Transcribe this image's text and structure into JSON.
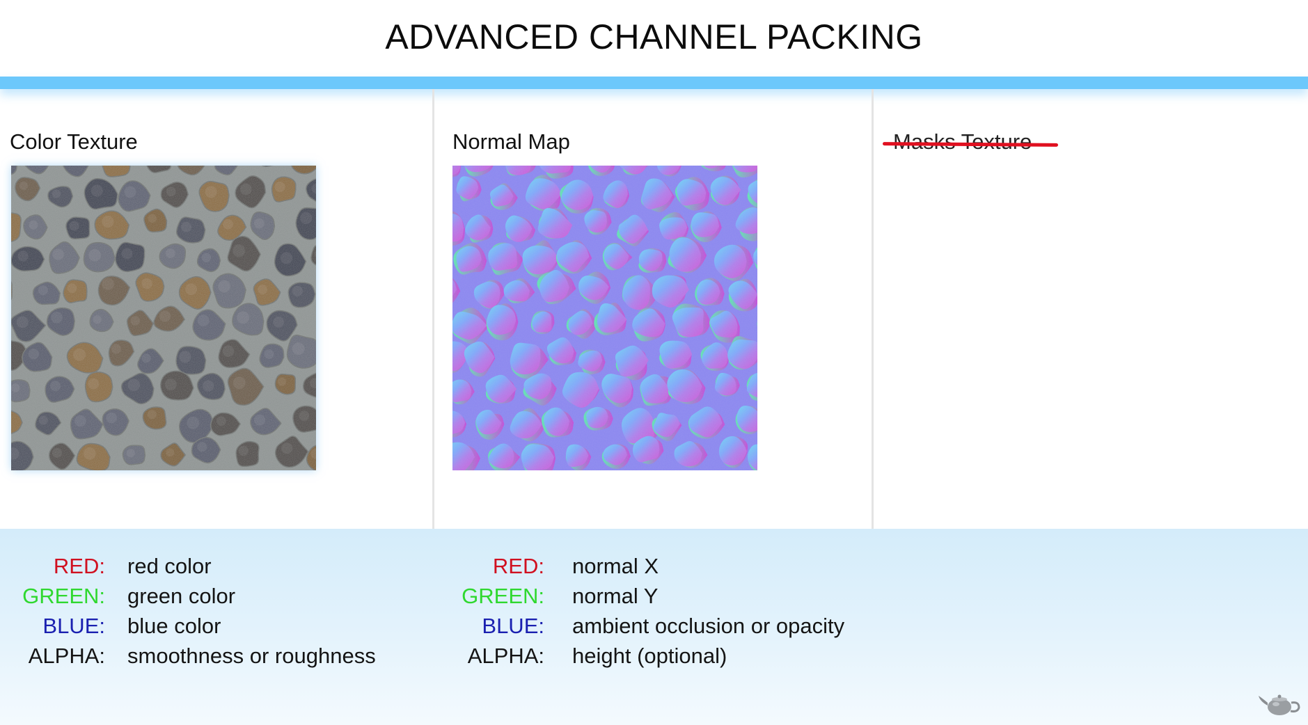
{
  "title": "ADVANCED CHANNEL PACKING",
  "columns": [
    {
      "label": "Color Texture",
      "image": "cobblestone-color-texture",
      "channels": [
        {
          "name": "RED:",
          "value": "red color",
          "color": "#d01020"
        },
        {
          "name": "GREEN:",
          "value": "green color",
          "color": "#2fd82f"
        },
        {
          "name": "BLUE:",
          "value": "blue color",
          "color": "#1a20b0"
        },
        {
          "name": "ALPHA:",
          "value": "smoothness or roughness",
          "color": "#141414"
        }
      ]
    },
    {
      "label": "Normal Map",
      "image": "cobblestone-normal-map",
      "channels": [
        {
          "name": "RED:",
          "value": "normal X",
          "color": "#d01020"
        },
        {
          "name": "GREEN:",
          "value": "normal Y",
          "color": "#2fd82f"
        },
        {
          "name": "BLUE:",
          "value": "ambient occlusion or opacity",
          "color": "#1a20b0"
        },
        {
          "name": "ALPHA:",
          "value": "height (optional)",
          "color": "#141414"
        }
      ]
    },
    {
      "label": "Masks Texture",
      "struck_through": true
    }
  ],
  "colors": {
    "accent_bar": "#6cc8fb",
    "strike": "#e01020"
  },
  "icons": {
    "corner": "teapot-icon"
  }
}
